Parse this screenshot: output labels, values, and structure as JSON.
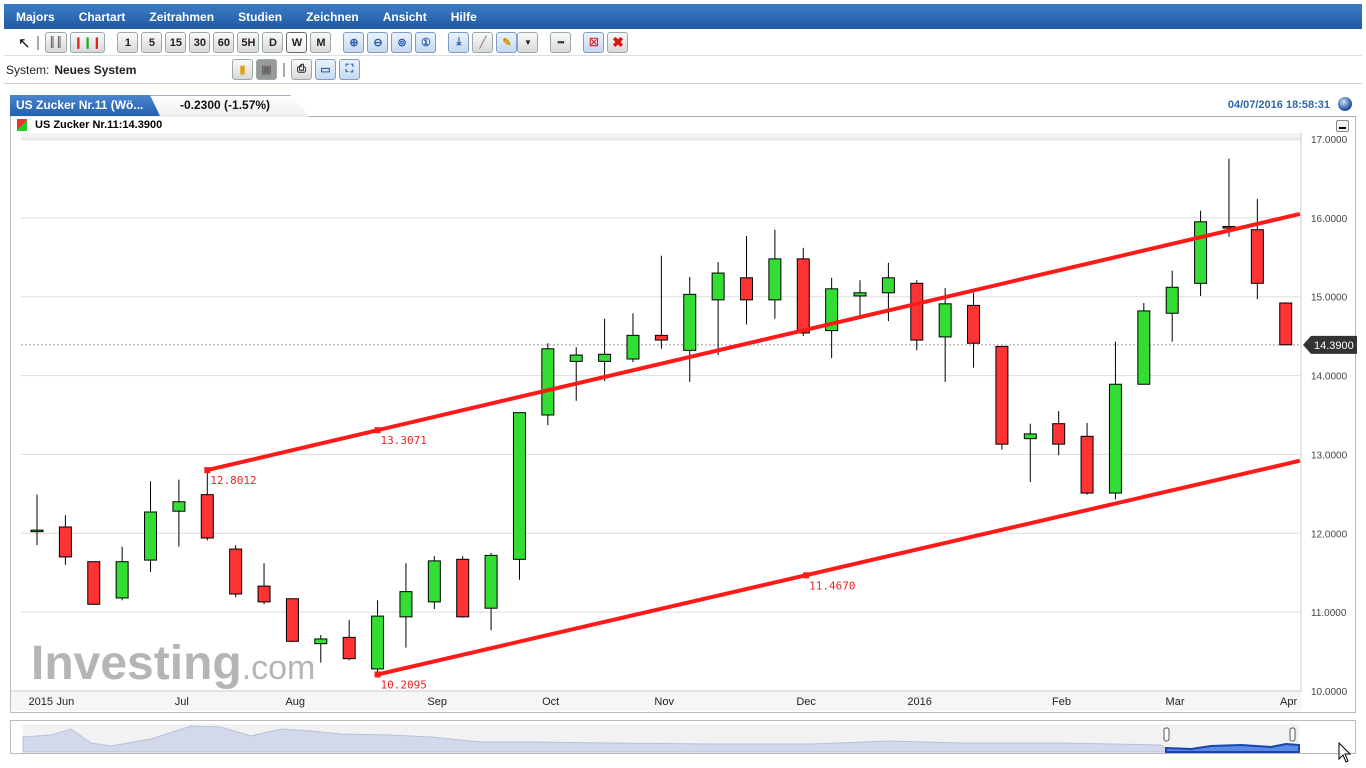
{
  "menu": [
    "Majors",
    "Chartart",
    "Zeitrahmen",
    "Studien",
    "Zeichnen",
    "Ansicht",
    "Hilfe"
  ],
  "toolbar": {
    "timeframes": [
      "1",
      "5",
      "15",
      "30",
      "60",
      "5H",
      "D",
      "W",
      "M"
    ],
    "active_timeframe": "W"
  },
  "system": {
    "label": "System:",
    "value": "Neues System"
  },
  "tab": {
    "name": "US Zucker Nr.11 (Wö...",
    "change": "-0.2300 (-1.57%)"
  },
  "datetime": "04/07/2016 18:58:31",
  "legend": "US Zucker Nr.11:14.3900",
  "watermark": "Investing.com",
  "colors": {
    "up": "#33dd33",
    "down": "#ff3333",
    "trendline": "#ff1a1a",
    "menubar": "#2a65b0",
    "date": "#2f68a8"
  },
  "chart_data": {
    "type": "candlestick",
    "interval": "weekly",
    "ylim": [
      10,
      17
    ],
    "yticks": [
      "10.0000",
      "11.0000",
      "12.0000",
      "13.0000",
      "14.0000",
      "15.0000",
      "16.0000",
      "17.0000"
    ],
    "grid": true,
    "last_price": "14.3900",
    "xticks": [
      {
        "label": "2015",
        "at": -0.3
      },
      {
        "label": "Jun",
        "at": 1
      },
      {
        "label": "Jul",
        "at": 5.1
      },
      {
        "label": "Aug",
        "at": 9.1
      },
      {
        "label": "Sep",
        "at": 14.1
      },
      {
        "label": "Oct",
        "at": 18.1
      },
      {
        "label": "Nov",
        "at": 22.1
      },
      {
        "label": "Dec",
        "at": 27.1
      },
      {
        "label": "2016",
        "at": 31.1
      },
      {
        "label": "Feb",
        "at": 36.1
      },
      {
        "label": "Mar",
        "at": 40.1
      },
      {
        "label": "Apr",
        "at": 44.1
      }
    ],
    "candles": [
      [
        12.04,
        12.49,
        11.85,
        12.04
      ],
      [
        12.08,
        12.23,
        11.6,
        11.7
      ],
      [
        11.64,
        11.64,
        11.09,
        11.1
      ],
      [
        11.18,
        11.83,
        11.15,
        11.64
      ],
      [
        11.66,
        12.66,
        11.51,
        12.27
      ],
      [
        12.28,
        12.68,
        11.83,
        12.4
      ],
      [
        12.49,
        12.8,
        11.91,
        11.94
      ],
      [
        11.8,
        11.85,
        11.19,
        11.23
      ],
      [
        11.33,
        11.62,
        11.1,
        11.13
      ],
      [
        11.17,
        11.17,
        10.62,
        10.63
      ],
      [
        10.6,
        10.71,
        10.36,
        10.66
      ],
      [
        10.68,
        10.9,
        10.39,
        10.41
      ],
      [
        10.28,
        11.15,
        10.21,
        10.95
      ],
      [
        10.94,
        11.62,
        10.55,
        11.26
      ],
      [
        11.13,
        11.71,
        11.04,
        11.65
      ],
      [
        11.67,
        11.71,
        10.93,
        10.94
      ],
      [
        11.05,
        11.75,
        10.77,
        11.72
      ],
      [
        11.67,
        13.53,
        11.41,
        13.53
      ],
      [
        13.5,
        14.41,
        13.37,
        14.34
      ],
      [
        14.18,
        14.36,
        13.68,
        14.26
      ],
      [
        14.18,
        14.72,
        13.93,
        14.27
      ],
      [
        14.21,
        14.79,
        14.17,
        14.51
      ],
      [
        14.51,
        15.52,
        14.34,
        14.45
      ],
      [
        14.32,
        15.25,
        13.92,
        15.03
      ],
      [
        14.96,
        15.44,
        14.26,
        15.3
      ],
      [
        15.24,
        15.77,
        14.65,
        14.96
      ],
      [
        14.96,
        15.85,
        14.72,
        15.48
      ],
      [
        15.48,
        15.62,
        14.5,
        14.54
      ],
      [
        14.57,
        15.24,
        14.22,
        15.1
      ],
      [
        15.01,
        15.21,
        14.76,
        15.05
      ],
      [
        15.05,
        15.43,
        14.69,
        15.24
      ],
      [
        15.17,
        15.21,
        14.32,
        14.45
      ],
      [
        14.49,
        15.11,
        13.92,
        14.91
      ],
      [
        14.89,
        15.05,
        14.1,
        14.41
      ],
      [
        14.37,
        14.37,
        13.06,
        13.13
      ],
      [
        13.2,
        13.39,
        12.65,
        13.26
      ],
      [
        13.39,
        13.55,
        12.99,
        13.13
      ],
      [
        13.23,
        13.4,
        12.49,
        12.51
      ],
      [
        12.51,
        14.43,
        12.43,
        13.89
      ],
      [
        13.89,
        14.92,
        13.89,
        14.82
      ],
      [
        14.79,
        15.33,
        14.43,
        15.12
      ],
      [
        15.17,
        16.09,
        15.01,
        15.95
      ],
      [
        15.89,
        16.75,
        15.76,
        15.87
      ],
      [
        15.85,
        16.24,
        14.97,
        15.17
      ],
      [
        14.92,
        14.93,
        14.39,
        14.39
      ]
    ],
    "candle_fields": [
      "open",
      "high",
      "low",
      "close"
    ],
    "trendlines": [
      {
        "points": [
          [
            6,
            12.8012
          ],
          [
            44.5,
            16.05
          ]
        ],
        "labels": [
          {
            "text": "12.8012",
            "at": 6,
            "value": 12.8012
          },
          {
            "text": "13.3071",
            "at": 12,
            "value": 13.3071
          }
        ]
      },
      {
        "points": [
          [
            12,
            10.2095
          ],
          [
            44.5,
            12.92
          ]
        ],
        "labels": [
          {
            "text": "10.2095",
            "at": 12,
            "value": 10.2095
          },
          {
            "text": "11.4670",
            "at": 27.1,
            "value": 11.467
          }
        ]
      }
    ]
  }
}
